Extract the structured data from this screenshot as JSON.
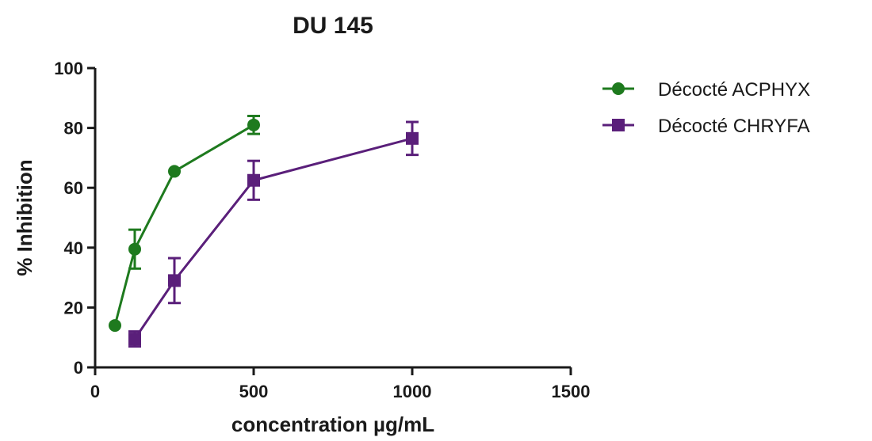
{
  "chart_data": {
    "type": "line",
    "title": "DU 145",
    "xlabel": "concentration µg/mL",
    "ylabel": "% Inhibition",
    "xlim": [
      0,
      1500
    ],
    "ylim": [
      0,
      100
    ],
    "xticks": [
      0,
      500,
      1000,
      1500
    ],
    "yticks": [
      0,
      20,
      40,
      60,
      80,
      100
    ],
    "grid": false,
    "legend_position": "top-right",
    "series": [
      {
        "name": "Décocté ACPHYX",
        "color": "#1e7a1e",
        "marker": "circle",
        "x": [
          62.5,
          125,
          250,
          500
        ],
        "y": [
          14,
          39.5,
          65.5,
          81
        ],
        "error": [
          0,
          6.5,
          0,
          3
        ]
      },
      {
        "name": "Décocté CHRYFA",
        "color": "#5a1f7a",
        "marker": "square",
        "x": [
          125,
          250,
          500,
          1000
        ],
        "y": [
          9.5,
          29,
          62.5,
          76.5
        ],
        "error": [
          2.5,
          7.5,
          6.5,
          5.5
        ]
      }
    ]
  }
}
